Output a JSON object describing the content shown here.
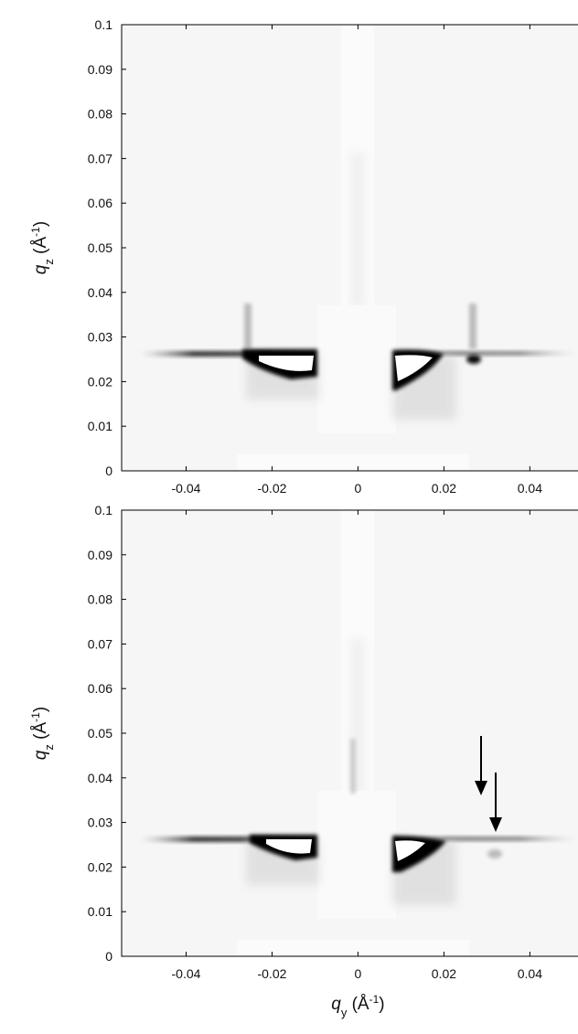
{
  "chart_data": [
    {
      "type": "image",
      "xlim": [
        -0.055,
        0.0512
      ],
      "ylim": [
        0,
        0.1
      ],
      "xticks": [
        -0.04,
        -0.02,
        0,
        0.02,
        0.04
      ],
      "yticks": [
        0,
        0.01,
        0.02,
        0.03,
        0.04,
        0.05,
        0.06,
        0.07,
        0.08,
        0.09,
        0.1
      ],
      "ylabel": [
        "q",
        "z",
        " (Å",
        "-1",
        ")"
      ]
    },
    {
      "type": "image",
      "xlim": [
        -0.055,
        0.0512
      ],
      "ylim": [
        0,
        0.1
      ],
      "xticks": [
        -0.04,
        -0.02,
        0,
        0.02,
        0.04
      ],
      "yticks": [
        0,
        0.01,
        0.02,
        0.03,
        0.04,
        0.05,
        0.06,
        0.07,
        0.08,
        0.09,
        0.1
      ],
      "ylabel": [
        "q",
        "z",
        " (Å",
        "-1",
        ")"
      ],
      "xlabel": [
        "q",
        "y",
        " (Å",
        "-1",
        ")"
      ]
    }
  ]
}
